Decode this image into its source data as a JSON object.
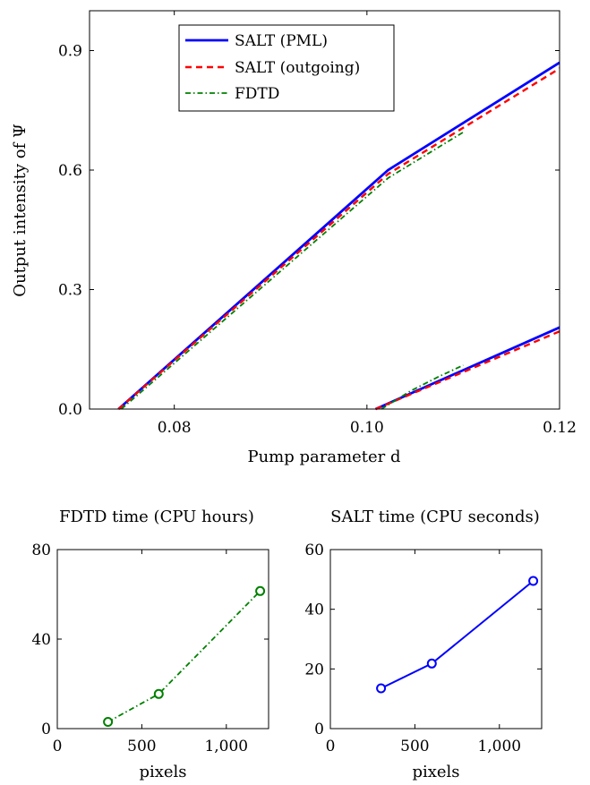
{
  "chart_data": [
    {
      "type": "line",
      "title": "",
      "xlabel": "Pump parameter d",
      "ylabel": "Output intensity of Ψ",
      "xlim": [
        0.0712,
        0.12
      ],
      "ylim": [
        0,
        1.0
      ],
      "xticks": [
        0.08,
        0.1,
        0.12
      ],
      "xtick_labels": [
        "0.08",
        "0.10",
        "0.12"
      ],
      "yticks": [
        0,
        0.3,
        0.6,
        0.9
      ],
      "ytick_labels": [
        "0.0",
        "0.3",
        "0.6",
        "0.9"
      ],
      "grid": false,
      "legend": "top-center",
      "series": [
        {
          "name": "SALT (PML)",
          "color": "#0000ff",
          "style": "solid",
          "segments": [
            [
              [
                0.0742,
                0.0
              ],
              [
                0.1022,
                0.6
              ],
              [
                0.12,
                0.87
              ]
            ],
            [
              [
                0.1009,
                0.0
              ],
              [
                0.12,
                0.205
              ]
            ]
          ]
        },
        {
          "name": "SALT (outgoing)",
          "color": "#ff0000",
          "style": "dashed",
          "segments": [
            [
              [
                0.0742,
                0.0
              ],
              [
                0.1022,
                0.59
              ],
              [
                0.12,
                0.855
              ]
            ],
            [
              [
                0.1009,
                0.0
              ],
              [
                0.12,
                0.195
              ]
            ]
          ]
        },
        {
          "name": "FDTD",
          "color": "#008000",
          "style": "dashdot",
          "segments": [
            [
              [
                0.0745,
                0.0
              ],
              [
                0.1022,
                0.58
              ],
              [
                0.11,
                0.695
              ]
            ],
            [
              [
                0.1015,
                0.0
              ],
              [
                0.1045,
                0.045
              ],
              [
                0.1075,
                0.082
              ],
              [
                0.11,
                0.11
              ]
            ]
          ]
        }
      ]
    },
    {
      "type": "line",
      "title": "FDTD time (CPU hours)",
      "xlabel": "pixels",
      "ylabel": "",
      "xlim": [
        0,
        1250
      ],
      "ylim": [
        0,
        80
      ],
      "xticks": [
        0,
        500,
        1000
      ],
      "xtick_labels": [
        "0",
        "500",
        "1,000"
      ],
      "yticks": [
        0,
        40,
        80
      ],
      "ytick_labels": [
        "0",
        "40",
        "80"
      ],
      "series": [
        {
          "color": "#008000",
          "style": "dashdot",
          "marker": "circle",
          "x": [
            300,
            600,
            1200
          ],
          "y": [
            3,
            15.5,
            61.5
          ]
        }
      ]
    },
    {
      "type": "line",
      "title": "SALT time (CPU seconds)",
      "xlabel": "pixels",
      "ylabel": "",
      "xlim": [
        0,
        1250
      ],
      "ylim": [
        0,
        60
      ],
      "xticks": [
        0,
        500,
        1000
      ],
      "xtick_labels": [
        "0",
        "500",
        "1,000"
      ],
      "yticks": [
        0,
        20,
        40,
        60
      ],
      "ytick_labels": [
        "0",
        "20",
        "40",
        "60"
      ],
      "series": [
        {
          "color": "#0000ff",
          "style": "solid",
          "marker": "circle",
          "x": [
            300,
            600,
            1200
          ],
          "y": [
            13.5,
            21.8,
            49.5
          ]
        }
      ]
    }
  ]
}
